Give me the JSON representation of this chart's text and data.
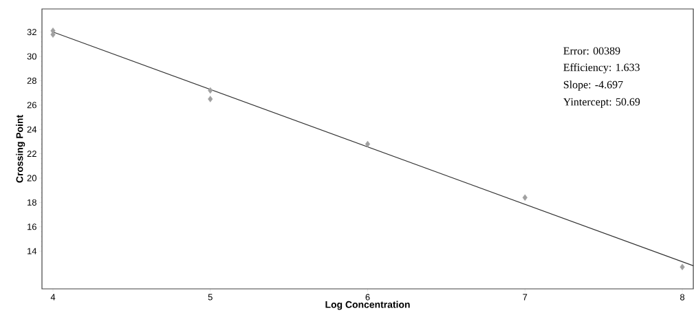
{
  "chart_data": {
    "type": "scatter",
    "xlabel": "Log Concentration",
    "ylabel": "Crossing Point",
    "xlim": [
      3.93,
      8.07
    ],
    "ylim": [
      10.9,
      33.9
    ],
    "xticks": [
      4,
      5,
      6,
      7,
      8
    ],
    "yticks": [
      14,
      16,
      18,
      20,
      22,
      24,
      26,
      28,
      30,
      32
    ],
    "series": [
      {
        "marker": "diamond",
        "color": "#a0a0a0",
        "x": [
          4,
          4,
          5,
          5,
          6,
          7,
          8
        ],
        "values": [
          32.1,
          31.8,
          27.2,
          26.5,
          22.8,
          18.4,
          12.7
        ]
      },
      {
        "type": "line",
        "color": "#303030",
        "x": [
          4,
          8.07
        ],
        "values": [
          32.0,
          12.8
        ]
      }
    ],
    "annotations": [
      "Error: 00389",
      "Efficiency: 1.633",
      "Slope: -4.697",
      "Yintercept: 50.69"
    ]
  }
}
